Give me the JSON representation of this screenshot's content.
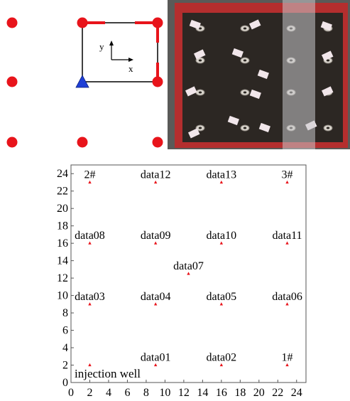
{
  "schematic": {
    "axis_y_label": "y",
    "axis_x_label": "x",
    "colors": {
      "well": "#e8141b",
      "injection_marker": "#1f3fd6",
      "frame": "#000000"
    },
    "icons": {
      "injection": "blue-triangle-marker",
      "well": "red-dot"
    }
  },
  "photo": {
    "description_icon": "physical-model-photo",
    "colors": {
      "background": "#5a5a58",
      "border": "#b42e2e",
      "plate": "#2c2723",
      "overlay": "#c9c9cc",
      "label": "#f1e6ea"
    }
  },
  "chart_data": {
    "type": "scatter",
    "title": "",
    "xlabel": "",
    "ylabel": "",
    "xlim": [
      0,
      25
    ],
    "ylim": [
      0,
      25
    ],
    "xticks": [
      "0",
      "2",
      "4",
      "6",
      "8",
      "10",
      "12",
      "14",
      "16",
      "18",
      "20",
      "22",
      "24"
    ],
    "yticks": [
      "0",
      "2",
      "4",
      "6",
      "8",
      "10",
      "12",
      "14",
      "16",
      "18",
      "20",
      "22",
      "24"
    ],
    "grid": false,
    "marker_color": "#e8141b",
    "points": [
      {
        "label": "2#",
        "x": 2,
        "y": 23
      },
      {
        "label": "data12",
        "x": 9,
        "y": 23
      },
      {
        "label": "data13",
        "x": 16,
        "y": 23
      },
      {
        "label": "3#",
        "x": 23,
        "y": 23
      },
      {
        "label": "data08",
        "x": 2,
        "y": 16
      },
      {
        "label": "data09",
        "x": 9,
        "y": 16
      },
      {
        "label": "data10",
        "x": 16,
        "y": 16
      },
      {
        "label": "data11",
        "x": 23,
        "y": 16
      },
      {
        "label": "data07",
        "x": 12.5,
        "y": 12.5
      },
      {
        "label": "data03",
        "x": 2,
        "y": 9
      },
      {
        "label": "data04",
        "x": 9,
        "y": 9
      },
      {
        "label": "data05",
        "x": 16,
        "y": 9
      },
      {
        "label": "data06",
        "x": 23,
        "y": 9
      },
      {
        "label": "",
        "x": 2,
        "y": 2
      },
      {
        "label": "data01",
        "x": 9,
        "y": 2
      },
      {
        "label": "data02",
        "x": 16,
        "y": 2
      },
      {
        "label": "1#",
        "x": 23,
        "y": 2
      }
    ],
    "annotation": "injection well"
  }
}
